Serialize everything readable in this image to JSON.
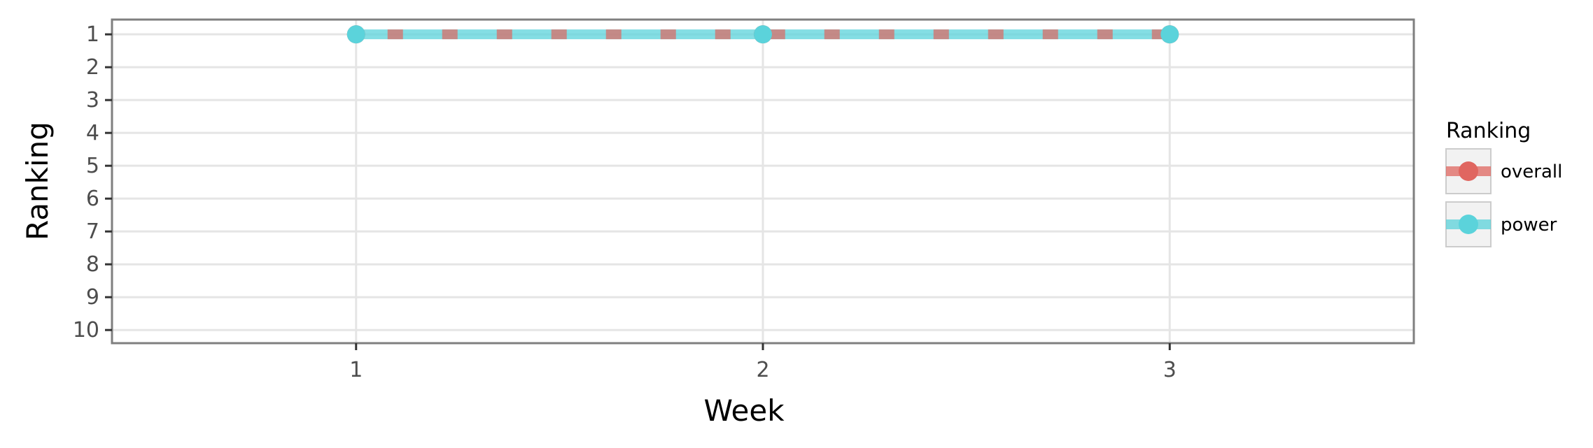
{
  "chart_data": {
    "type": "line",
    "title": "",
    "xlabel": "Week",
    "ylabel": "Ranking",
    "x": [
      1,
      2,
      3
    ],
    "x_ticks": [
      "1",
      "2",
      "3"
    ],
    "xlim": [
      0.4,
      3.6
    ],
    "y_ticks": [
      "1",
      "2",
      "3",
      "4",
      "5",
      "6",
      "7",
      "8",
      "9",
      "10"
    ],
    "ylim": [
      10.4,
      0.55
    ],
    "y_reversed": true,
    "grid": true,
    "legend": {
      "title": "Ranking",
      "position": "right"
    },
    "series": [
      {
        "name": "overall",
        "values": [
          1,
          1,
          1
        ],
        "color": "#e06660",
        "style": "dashed"
      },
      {
        "name": "power",
        "values": [
          1,
          1,
          1
        ],
        "color": "#5bd3db",
        "style": "solid"
      }
    ]
  }
}
